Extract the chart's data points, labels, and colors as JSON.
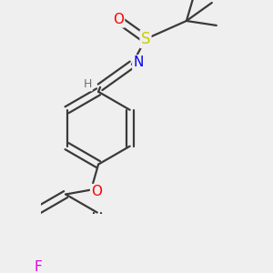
{
  "bg_color": "#efefef",
  "bond_color": "#3a3a3a",
  "atom_colors": {
    "O": "#ff0000",
    "S": "#cccc00",
    "N": "#0000ee",
    "F": "#dd00dd",
    "H": "#707070",
    "C": "#3a3a3a"
  },
  "line_width": 1.6,
  "dbo": 0.04,
  "font_size": 10,
  "ring_r": 0.4,
  "title": ""
}
